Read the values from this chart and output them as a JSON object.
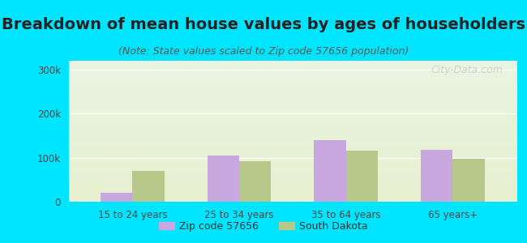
{
  "title": "Breakdown of mean house values by ages of householders",
  "subtitle": "(Note: State values scaled to Zip code 57656 population)",
  "categories": [
    "15 to 24 years",
    "25 to 34 years",
    "35 to 64 years",
    "65 years+"
  ],
  "zip_values": [
    20000,
    105000,
    140000,
    117000
  ],
  "state_values": [
    70000,
    92000,
    115000,
    98000
  ],
  "zip_color": "#c9a8e0",
  "state_color": "#b8c88a",
  "yticks": [
    0,
    100000,
    200000,
    300000
  ],
  "ytick_labels": [
    "0",
    "100k",
    "200k",
    "300k"
  ],
  "ylim": [
    0,
    320000
  ],
  "legend_zip": "Zip code 57656",
  "legend_state": "South Dakota",
  "background_outer": "#00e5ff",
  "bg_top_color": "#e8f5e2",
  "bg_bottom_color": "#e8f0d0",
  "watermark": "City-Data.com",
  "bar_width": 0.3,
  "title_fontsize": 14,
  "subtitle_fontsize": 9
}
